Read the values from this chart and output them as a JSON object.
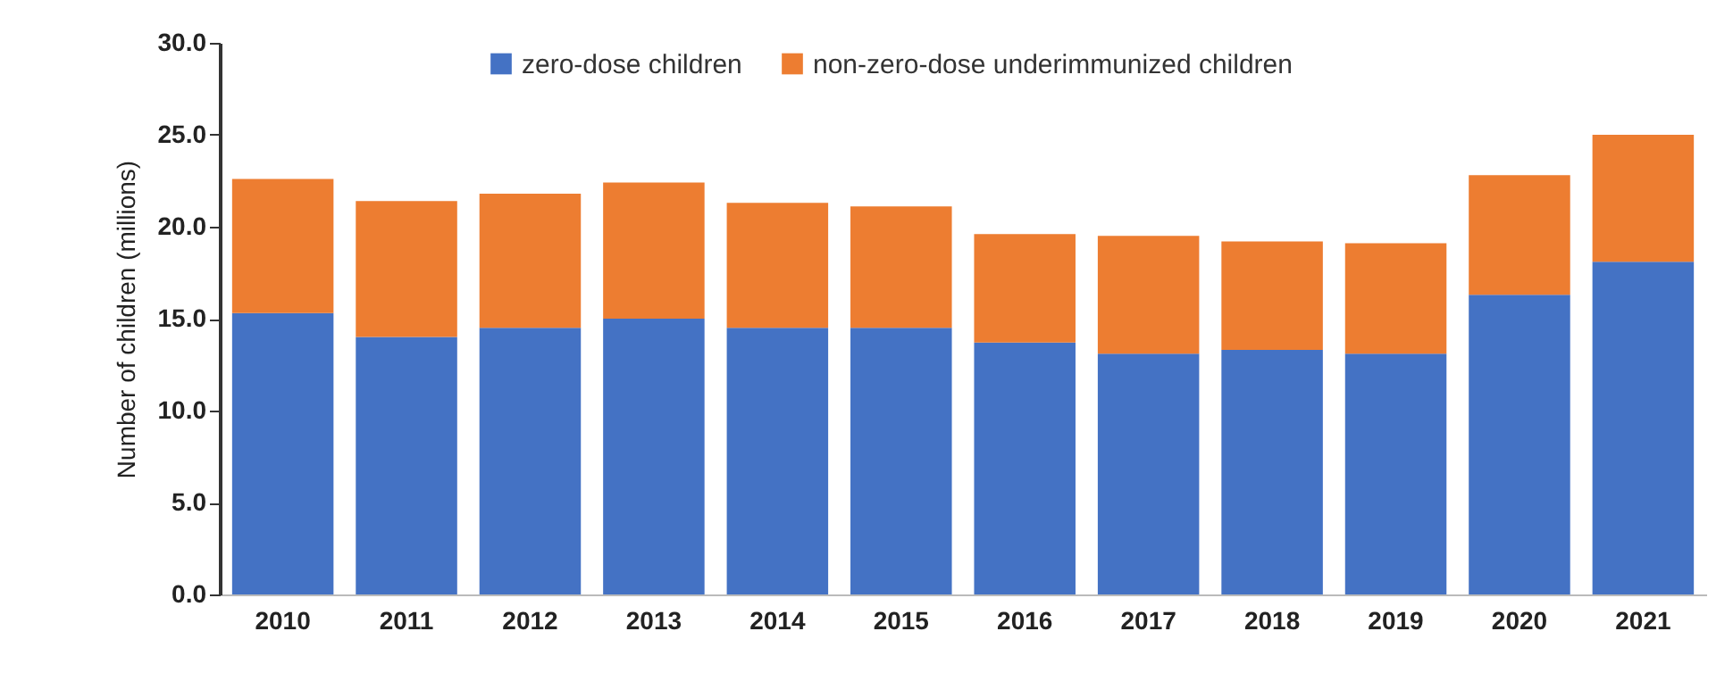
{
  "chart_data": {
    "type": "bar",
    "stacked": true,
    "ylabel": "Number of children (millions)",
    "categories": [
      "2010",
      "2011",
      "2012",
      "2013",
      "2014",
      "2015",
      "2016",
      "2017",
      "2018",
      "2019",
      "2020",
      "2021"
    ],
    "series": [
      {
        "name": "zero-dose children",
        "color": "#4472c4",
        "values": [
          15.3,
          14.0,
          14.5,
          15.0,
          14.5,
          14.5,
          13.7,
          13.1,
          13.3,
          13.1,
          16.3,
          18.1
        ]
      },
      {
        "name": "non-zero-dose underimmunized children",
        "color": "#ed7d31",
        "values": [
          7.3,
          7.4,
          7.3,
          7.4,
          6.8,
          6.6,
          5.9,
          6.4,
          5.9,
          6.0,
          6.5,
          6.9
        ]
      }
    ],
    "ylim": [
      0,
      30
    ],
    "yticks": [
      {
        "value": 0,
        "label": "0.0"
      },
      {
        "value": 5,
        "label": "5.0"
      },
      {
        "value": 10,
        "label": "10.0"
      },
      {
        "value": 15,
        "label": "15.0"
      },
      {
        "value": 20,
        "label": "20.0"
      },
      {
        "value": 25,
        "label": "25.0"
      },
      {
        "value": 30,
        "label": "30.0"
      }
    ],
    "legend": "top",
    "grid": false
  }
}
